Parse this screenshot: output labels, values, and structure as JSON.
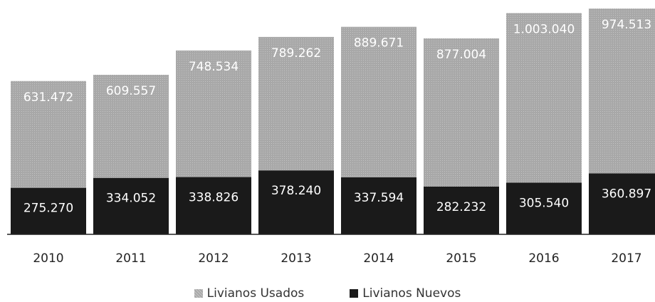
{
  "chart_data": {
    "type": "bar",
    "stacked": true,
    "categories": [
      "2010",
      "2011",
      "2012",
      "2013",
      "2014",
      "2015",
      "2016",
      "2017"
    ],
    "series": [
      {
        "name": "Livianos Nuevos",
        "values": [
          275270,
          334052,
          338826,
          378240,
          337594,
          282232,
          305540,
          360897
        ],
        "labels": [
          "275.270",
          "334.052",
          "338.826",
          "378.240",
          "337.594",
          "282.232",
          "305.540",
          "360.897"
        ],
        "color": "#1a1a1a"
      },
      {
        "name": "Livianos Usados",
        "values": [
          631472,
          609557,
          748534,
          789262,
          889671,
          877004,
          1003040,
          974513
        ],
        "labels": [
          "631.472",
          "609.557",
          "748.534",
          "789.262",
          "889.671",
          "877.004",
          "1.003.040",
          "974.513"
        ],
        "color": "#a8a8a8"
      }
    ],
    "legend_order": [
      "Livianos Usados",
      "Livianos Nuevos"
    ],
    "legend_position": "bottom",
    "grid": false,
    "title": "",
    "xlabel": "",
    "ylabel": ""
  }
}
